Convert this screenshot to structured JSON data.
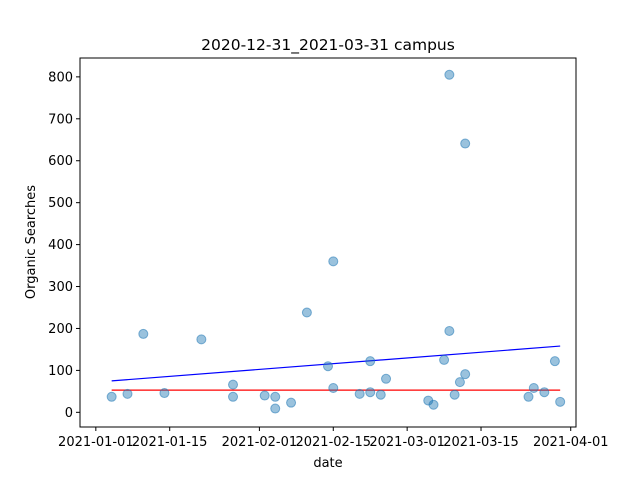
{
  "chart_data": {
    "type": "scatter",
    "title": "2020-12-31_2021-03-31 campus",
    "xlabel": "date",
    "ylabel": "Organic Searches",
    "x_ticks": [
      "2021-01-01",
      "2021-01-15",
      "2021-02-01",
      "2021-02-15",
      "2021-03-01",
      "2021-03-15",
      "2021-04-01"
    ],
    "y_ticks": [
      0,
      100,
      200,
      300,
      400,
      500,
      600,
      700,
      800
    ],
    "xlim": [
      "2020-12-29",
      "2021-04-02"
    ],
    "ylim": [
      -35,
      845
    ],
    "grid": false,
    "point_color": "#1f77b4",
    "points": [
      {
        "x": "2021-01-04",
        "y": 37
      },
      {
        "x": "2021-01-07",
        "y": 44
      },
      {
        "x": "2021-01-10",
        "y": 187
      },
      {
        "x": "2021-01-14",
        "y": 46
      },
      {
        "x": "2021-01-21",
        "y": 174
      },
      {
        "x": "2021-01-27",
        "y": 66
      },
      {
        "x": "2021-01-27",
        "y": 37
      },
      {
        "x": "2021-02-02",
        "y": 40
      },
      {
        "x": "2021-02-04",
        "y": 37
      },
      {
        "x": "2021-02-04",
        "y": 9
      },
      {
        "x": "2021-02-07",
        "y": 23
      },
      {
        "x": "2021-02-10",
        "y": 238
      },
      {
        "x": "2021-02-14",
        "y": 110
      },
      {
        "x": "2021-02-15",
        "y": 360
      },
      {
        "x": "2021-02-15",
        "y": 58
      },
      {
        "x": "2021-02-20",
        "y": 44
      },
      {
        "x": "2021-02-22",
        "y": 122
      },
      {
        "x": "2021-02-22",
        "y": 48
      },
      {
        "x": "2021-02-24",
        "y": 42
      },
      {
        "x": "2021-02-25",
        "y": 80
      },
      {
        "x": "2021-03-05",
        "y": 28
      },
      {
        "x": "2021-03-06",
        "y": 18
      },
      {
        "x": "2021-03-08",
        "y": 125
      },
      {
        "x": "2021-03-09",
        "y": 805
      },
      {
        "x": "2021-03-09",
        "y": 194
      },
      {
        "x": "2021-03-10",
        "y": 42
      },
      {
        "x": "2021-03-11",
        "y": 72
      },
      {
        "x": "2021-03-12",
        "y": 641
      },
      {
        "x": "2021-03-12",
        "y": 91
      },
      {
        "x": "2021-03-24",
        "y": 37
      },
      {
        "x": "2021-03-25",
        "y": 58
      },
      {
        "x": "2021-03-27",
        "y": 48
      },
      {
        "x": "2021-03-29",
        "y": 122
      },
      {
        "x": "2021-03-30",
        "y": 25
      }
    ],
    "lines": [
      {
        "color": "#0000ff",
        "x": [
          "2021-01-04",
          "2021-03-30"
        ],
        "y": [
          75,
          158
        ]
      },
      {
        "color": "#ff0000",
        "x": [
          "2021-01-04",
          "2021-03-30"
        ],
        "y": [
          53,
          53
        ]
      }
    ]
  }
}
